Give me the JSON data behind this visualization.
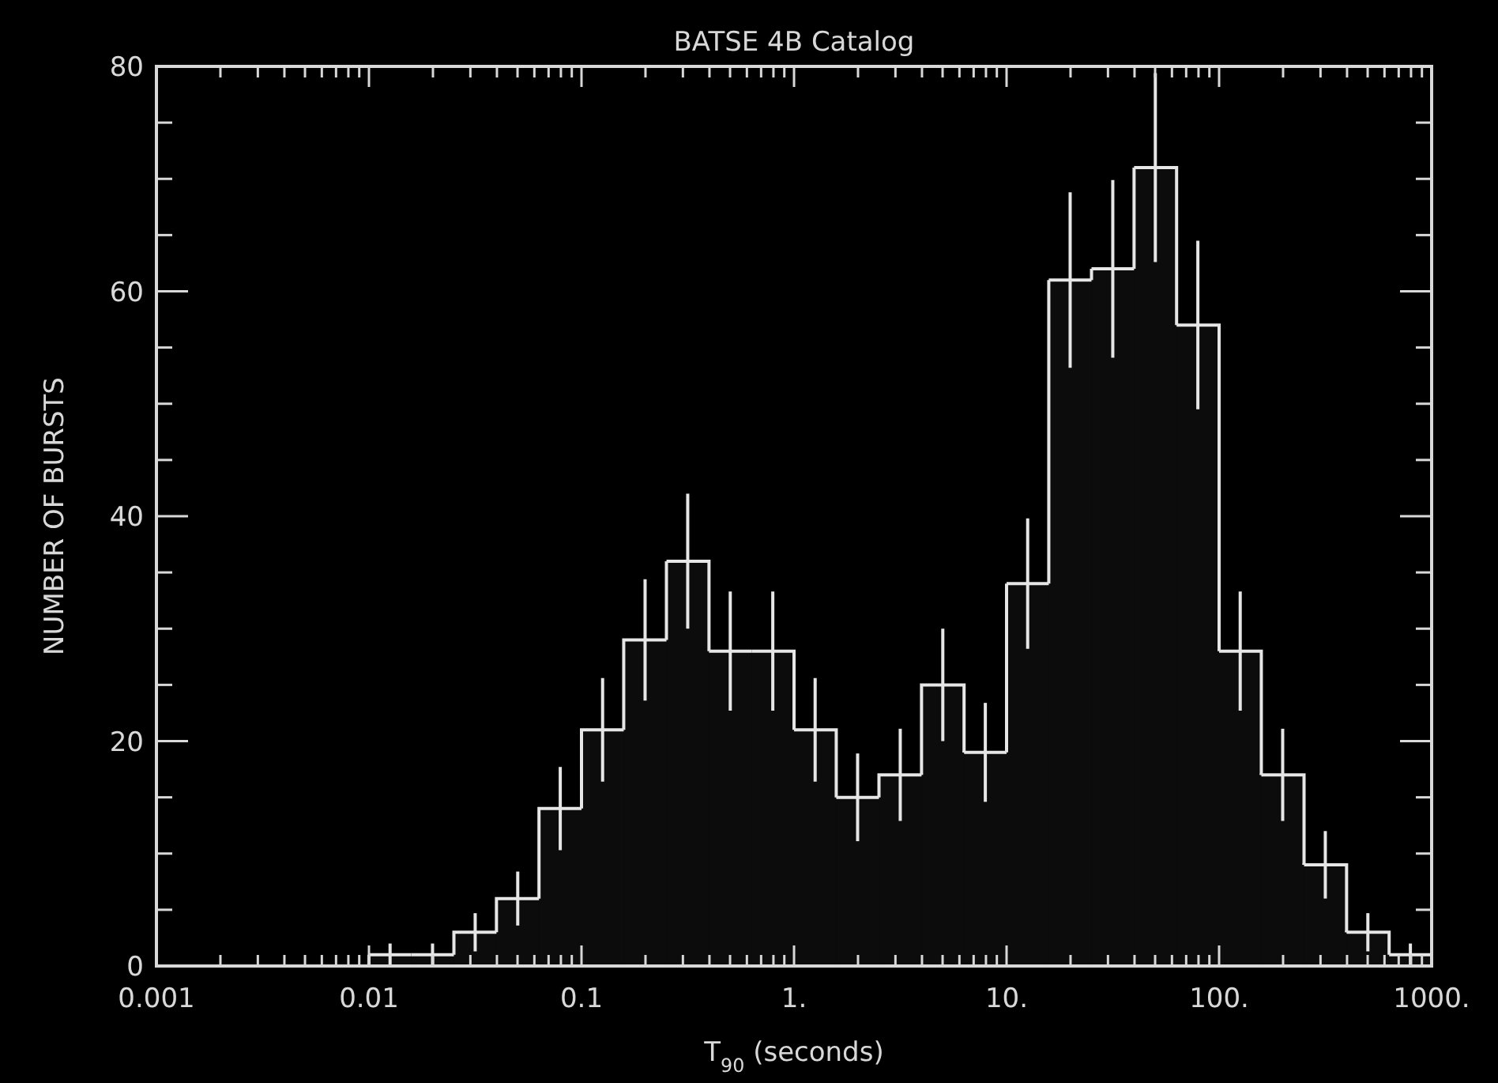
{
  "chart_data": {
    "type": "histogram",
    "title": "BATSE 4B Catalog",
    "xlabel": "T$_{90}$ (seconds)",
    "ylabel": "NUMBER OF BURSTS",
    "bins": [
      0.01,
      0.0158,
      0.0251,
      0.0398,
      0.0631,
      0.1,
      0.158,
      0.251,
      0.398,
      0.631,
      1,
      1.58,
      2.51,
      3.98,
      6.31,
      10,
      15.8,
      25.1,
      39.8,
      63.1,
      100,
      158,
      251,
      398,
      631,
      1000
    ],
    "values": [
      1,
      1,
      3,
      6,
      14,
      21,
      29,
      36,
      28,
      28,
      21,
      15,
      17,
      25,
      19,
      34,
      61,
      62,
      71,
      57,
      28,
      17,
      9,
      3,
      1
    ],
    "errors": [
      1,
      1,
      1.7,
      2.4,
      3.7,
      4.6,
      5.4,
      6,
      5.3,
      5.3,
      4.6,
      3.9,
      4.1,
      5,
      4.4,
      5.8,
      7.8,
      7.9,
      8.4,
      7.5,
      5.3,
      4.1,
      3,
      1.7,
      1
    ],
    "color": "#e6e6e6",
    "log": "x",
    "grid": false,
    "xlim": [
      0.001,
      1000
    ],
    "xticks": [
      {
        "value": 0.001,
        "label": "0.001"
      },
      {
        "value": 0.002,
        "label": null
      },
      {
        "value": 0.003,
        "label": null
      },
      {
        "value": 0.004,
        "label": null
      },
      {
        "value": 0.005,
        "label": null
      },
      {
        "value": 0.006,
        "label": null
      },
      {
        "value": 0.007,
        "label": null
      },
      {
        "value": 0.008,
        "label": null
      },
      {
        "value": 0.009,
        "label": null
      },
      {
        "value": 0.01,
        "label": "0.01"
      },
      {
        "value": 0.02,
        "label": null
      },
      {
        "value": 0.03,
        "label": null
      },
      {
        "value": 0.04,
        "label": null
      },
      {
        "value": 0.05,
        "label": null
      },
      {
        "value": 0.06,
        "label": null
      },
      {
        "value": 0.07,
        "label": null
      },
      {
        "value": 0.08,
        "label": null
      },
      {
        "value": 0.09,
        "label": null
      },
      {
        "value": 0.1,
        "label": "0.1"
      },
      {
        "value": 0.2,
        "label": null
      },
      {
        "value": 0.3,
        "label": null
      },
      {
        "value": 0.4,
        "label": null
      },
      {
        "value": 0.5,
        "label": null
      },
      {
        "value": 0.6,
        "label": null
      },
      {
        "value": 0.7,
        "label": null
      },
      {
        "value": 0.8,
        "label": null
      },
      {
        "value": 0.9,
        "label": null
      },
      {
        "value": 1,
        "label": "1."
      },
      {
        "value": 2,
        "label": null
      },
      {
        "value": 3,
        "label": null
      },
      {
        "value": 4,
        "label": null
      },
      {
        "value": 5,
        "label": null
      },
      {
        "value": 6,
        "label": null
      },
      {
        "value": 7,
        "label": null
      },
      {
        "value": 8,
        "label": null
      },
      {
        "value": 9,
        "label": null
      },
      {
        "value": 10,
        "label": "10."
      },
      {
        "value": 20,
        "label": null
      },
      {
        "value": 30,
        "label": null
      },
      {
        "value": 40,
        "label": null
      },
      {
        "value": 50,
        "label": null
      },
      {
        "value": 60,
        "label": null
      },
      {
        "value": 70,
        "label": null
      },
      {
        "value": 80,
        "label": null
      },
      {
        "value": 90,
        "label": null
      },
      {
        "value": 100,
        "label": "100."
      },
      {
        "value": 200,
        "label": null
      },
      {
        "value": 300,
        "label": null
      },
      {
        "value": 400,
        "label": null
      },
      {
        "value": 500,
        "label": null
      },
      {
        "value": 600,
        "label": null
      },
      {
        "value": 700,
        "label": null
      },
      {
        "value": 800,
        "label": null
      },
      {
        "value": 900,
        "label": null
      },
      {
        "value": 1000,
        "label": "1000."
      }
    ],
    "ylim": [
      0,
      80
    ],
    "yticks": [
      0,
      {
        "value": 5,
        "label": null
      },
      {
        "value": 10,
        "label": null
      },
      {
        "value": 15,
        "label": null
      },
      20,
      {
        "value": 25,
        "label": null
      },
      {
        "value": 30,
        "label": null
      },
      {
        "value": 35,
        "label": null
      },
      40,
      {
        "value": 45,
        "label": null
      },
      {
        "value": 50,
        "label": null
      },
      {
        "value": 55,
        "label": null
      },
      60,
      {
        "value": 65,
        "label": null
      },
      {
        "value": 70,
        "label": null
      },
      {
        "value": 75,
        "label": null
      },
      80
    ]
  }
}
